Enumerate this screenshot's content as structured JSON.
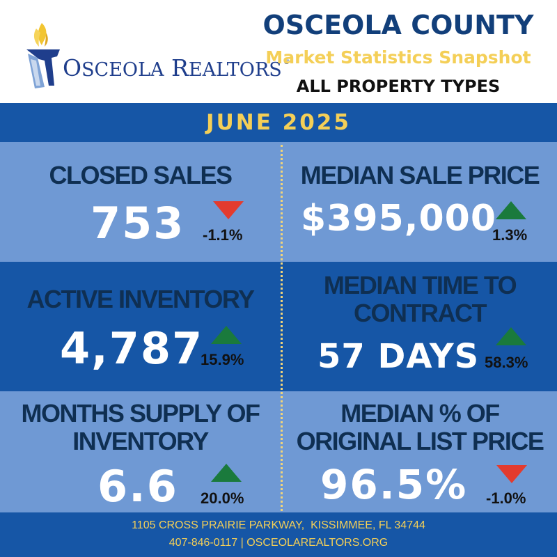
{
  "header": {
    "logo_word_initial1": "O",
    "logo_word_rest1": "SCEOLA",
    "logo_word_initial2": "R",
    "logo_word_rest2": "EALTORS",
    "logo_reg": "®",
    "county": "OSCEOLA COUNTY",
    "subtitle": "Market Statistics Snapshot",
    "property_types": "ALL PROPERTY TYPES"
  },
  "period": "JUNE 2025",
  "stats": [
    {
      "label": "CLOSED SALES",
      "value": "753",
      "change": "-1.1%",
      "direction": "down"
    },
    {
      "label": "MEDIAN SALE PRICE",
      "value": "$395,000",
      "change": "1.3%",
      "direction": "up"
    },
    {
      "label": "ACTIVE INVENTORY",
      "value": "4,787",
      "change": "15.9%",
      "direction": "up"
    },
    {
      "label_line1": "MEDIAN TIME TO",
      "label_line2": "CONTRACT",
      "value": "57 DAYS",
      "change": "58.3%",
      "direction": "up"
    },
    {
      "label_line1": "MONTHS SUPPLY OF",
      "label_line2": "INVENTORY",
      "value": "6.6",
      "change": "20.0%",
      "direction": "up"
    },
    {
      "label_line1": "MEDIAN % OF",
      "label_line2": "ORIGINAL LIST PRICE",
      "value": "96.5%",
      "change": "-1.0%",
      "direction": "down"
    }
  ],
  "colors": {
    "navy": "#123f7a",
    "blue_band": "#1656a6",
    "light_blue": "#6f99d4",
    "gold": "#f4cf57",
    "arrow_up": "#1a7a3c",
    "arrow_down": "#e33b2e"
  },
  "icons": [
    "torch-logo-icon",
    "arrow-down-icon",
    "arrow-up-icon"
  ],
  "footer": {
    "address": "1105 CROSS PRAIRIE PARKWAY,  KISSIMMEE, FL 34744",
    "contact": "407-846-0117 | OSCEOLAREALTORS.ORG"
  }
}
